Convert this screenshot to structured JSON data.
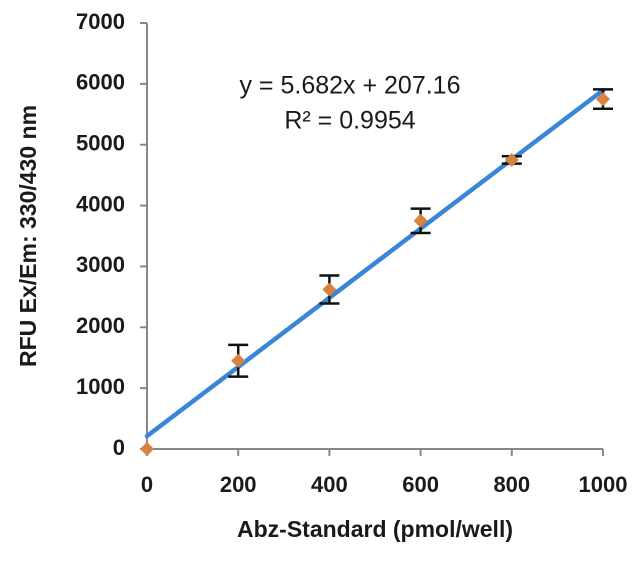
{
  "chart_data": {
    "type": "scatter",
    "x_label": "Abz-Standard (pmol/well)",
    "y_label": "RFU Ex/Em: 330/430 nm",
    "xlim": [
      0,
      1000
    ],
    "xticks": [
      0,
      200,
      400,
      600,
      800,
      1000
    ],
    "ylim": [
      0,
      7000
    ],
    "yticks": [
      0,
      1000,
      2000,
      3000,
      4000,
      5000,
      6000,
      7000
    ],
    "series": [
      {
        "x": [
          0,
          200,
          400,
          600,
          800,
          1000
        ],
        "values": [
          0,
          1450,
          2620,
          3750,
          4750,
          5750
        ],
        "errors": [
          null,
          260,
          230,
          200,
          60,
          160
        ],
        "color": "#d9823f",
        "error_color": "#111111"
      }
    ],
    "trendline": {
      "color": "#3a86d6",
      "equation": "y = 5.682x + 207.16",
      "r_squared": "R² = 0.9954"
    }
  }
}
